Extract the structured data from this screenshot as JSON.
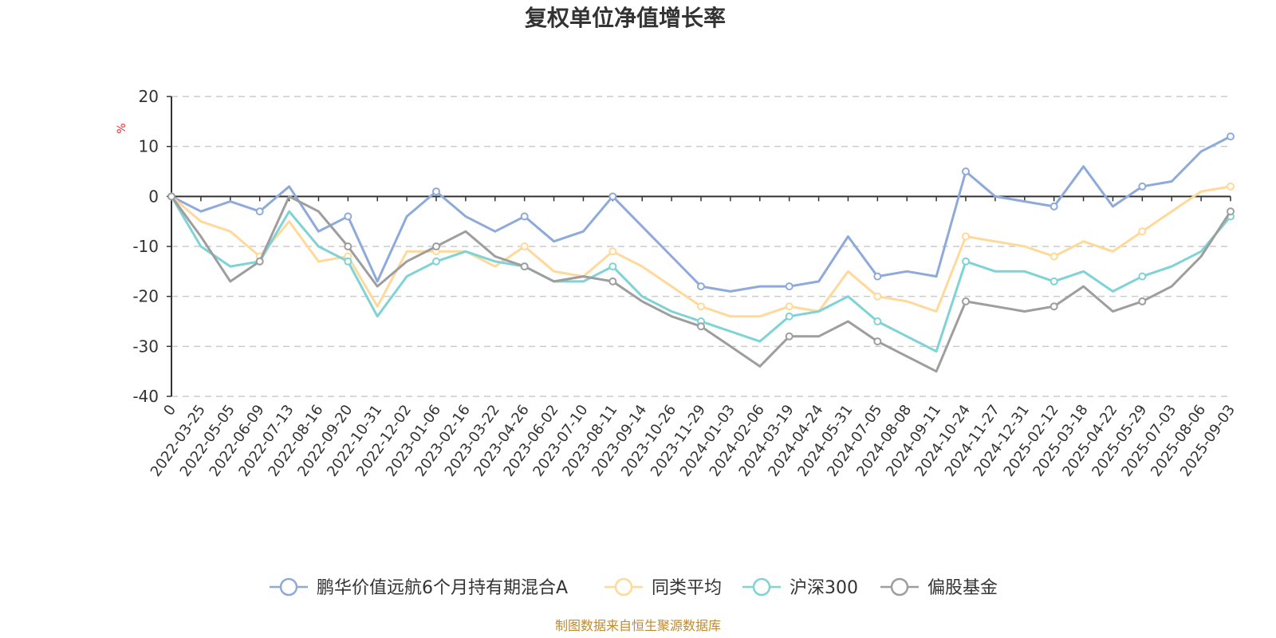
{
  "chart_data": {
    "type": "line",
    "title": "复权单位净值增长率",
    "ylabel": "%",
    "ylim": [
      -40,
      20
    ],
    "yticks": [
      20,
      10,
      0,
      -10,
      -20,
      -30,
      -40
    ],
    "grid": true,
    "legend_position": "bottom",
    "x": [
      "0",
      "2022-03-25",
      "2022-05-05",
      "2022-06-09",
      "2022-07-13",
      "2022-08-16",
      "2022-09-20",
      "2022-10-31",
      "2022-12-02",
      "2023-01-06",
      "2023-02-16",
      "2023-03-22",
      "2023-04-26",
      "2023-06-02",
      "2023-07-10",
      "2023-08-11",
      "2023-09-14",
      "2023-10-26",
      "2023-11-29",
      "2024-01-03",
      "2024-02-06",
      "2024-03-19",
      "2024-04-24",
      "2024-05-31",
      "2024-07-05",
      "2024-08-08",
      "2024-09-11",
      "2024-10-24",
      "2024-11-27",
      "2024-12-31",
      "2025-02-12",
      "2025-03-18",
      "2025-04-22",
      "2025-05-29",
      "2025-07-03",
      "2025-08-06",
      "2025-09-03"
    ],
    "series": [
      {
        "name": "鹏华价值远航6个月持有期混合A",
        "color": "#8eaadb",
        "values": [
          0,
          -3,
          -1,
          -3,
          2,
          -7,
          -4,
          -17,
          -4,
          1,
          -4,
          -7,
          -4,
          -9,
          -7,
          0,
          -6,
          -12,
          -18,
          -19,
          -18,
          -18,
          -17,
          -8,
          -16,
          -15,
          -16,
          5,
          0,
          -1,
          -2,
          6,
          -2,
          2,
          3,
          9,
          12
        ]
      },
      {
        "name": "同类平均",
        "color": "#ffd99a",
        "values": [
          0,
          -5,
          -7,
          -12,
          -5,
          -13,
          -12,
          -22,
          -11,
          -11,
          -11,
          -14,
          -10,
          -15,
          -16,
          -11,
          -14,
          -18,
          -22,
          -24,
          -24,
          -22,
          -23,
          -15,
          -20,
          -21,
          -23,
          -8,
          -9,
          -10,
          -12,
          -9,
          -11,
          -7,
          -3,
          1,
          2
        ]
      },
      {
        "name": "沪深300",
        "color": "#7fd3d6",
        "values": [
          0,
          -10,
          -14,
          -13,
          -3,
          -10,
          -13,
          -24,
          -16,
          -13,
          -11,
          -13,
          -14,
          -17,
          -17,
          -14,
          -20,
          -23,
          -25,
          -27,
          -29,
          -24,
          -23,
          -20,
          -25,
          -28,
          -31,
          -13,
          -15,
          -15,
          -17,
          -15,
          -19,
          -16,
          -14,
          -11,
          -4
        ]
      },
      {
        "name": "偏股基金",
        "color": "#9e9e9e",
        "values": [
          0,
          -8,
          -17,
          -13,
          0,
          -3,
          -10,
          -18,
          -13,
          -10,
          -7,
          -12,
          -14,
          -17,
          -16,
          -17,
          -21,
          -24,
          -26,
          -30,
          -34,
          -28,
          -28,
          -25,
          -29,
          -32,
          -35,
          -21,
          -22,
          -23,
          -22,
          -18,
          -23,
          -21,
          -18,
          -12,
          -3
        ]
      }
    ]
  },
  "source_text": "制图数据来自恒生聚源数据库"
}
